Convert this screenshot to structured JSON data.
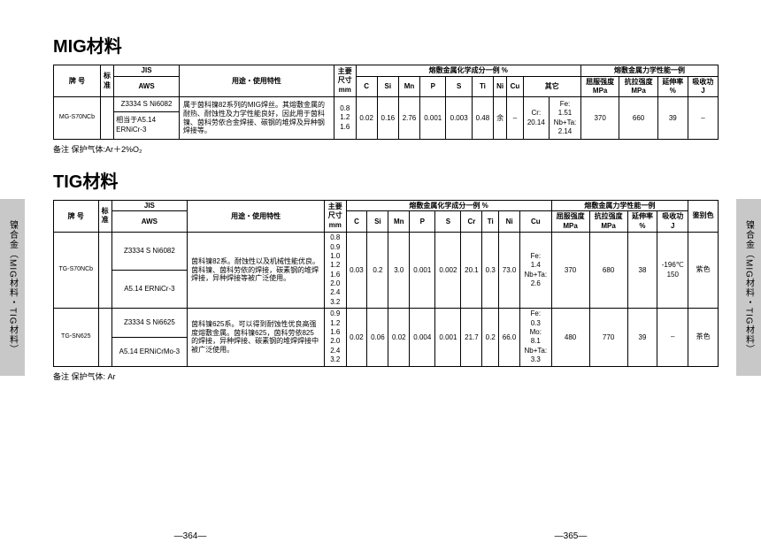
{
  "sidebar_label": "镍合金（MIG材料・TIG材料）",
  "mig": {
    "title": "MIG材料",
    "headers": {
      "grade": "牌 号",
      "standard": "标\n准",
      "jis": "JIS",
      "aws": "AWS",
      "usage": "用途・使用特性",
      "size": "主要\n尺寸\nmm",
      "comp_group": "熔敷金属化学成分一例 %",
      "c": "C",
      "si": "Si",
      "mn": "Mn",
      "p": "P",
      "s": "S",
      "ti": "Ti",
      "ni": "Ni",
      "cu": "Cu",
      "other": "其它",
      "mech_group": "熔敷金属力学性能一例",
      "ys": "屈服强度\nMPa",
      "ts": "抗拉强度\nMPa",
      "el": "延伸率\n%",
      "imp": "吸收功\nJ"
    },
    "row": {
      "grade": "MG-S70NCb",
      "jis": "Z3334 S Ni6082",
      "aws": "相当于A5.14\nERNiCr-3",
      "usage": "属于茵科镍82系列的MIG焊丝。其熔敷金属的耐热、耐蚀性及力学性能良好，因此用于茵科镍、茵科劳依合金焊接、碳钢的堆焊及异种钢焊接等。",
      "size": "0.8\n1.2\n1.6",
      "c": "0.02",
      "si": "0.16",
      "mn": "2.76",
      "p": "0.001",
      "s": "0.003",
      "ti": "0.48",
      "ni": "余",
      "cu": "–",
      "other": "Cr:\n20.14",
      "other2": "Fe:\n1.51\nNb+Ta:\n2.14",
      "ys": "370",
      "ts": "660",
      "el": "39",
      "imp": "–"
    },
    "note": "备注 保护气体:Ar＋2%O₂"
  },
  "tig": {
    "title": "TIG材料",
    "headers": {
      "grade": "牌 号",
      "standard": "标\n准",
      "jis": "JIS",
      "aws": "AWS",
      "usage": "用途・使用特性",
      "size": "主要\n尺寸\nmm",
      "comp_group": "熔敷金属化学成分一例 %",
      "c": "C",
      "si": "Si",
      "mn": "Mn",
      "p": "P",
      "s": "S",
      "cr": "Cr",
      "ti": "Ti",
      "ni": "Ni",
      "cu": "Cu",
      "mech_group": "熔敷金属力学性能一例",
      "ys": "屈服强度\nMPa",
      "ts": "抗拉强度\nMPa",
      "el": "延伸率\n%",
      "imp": "吸收功\nJ",
      "color": "鉴别色"
    },
    "rows": [
      {
        "grade": "TG-S70NCb",
        "jis": "Z3334 S Ni6082",
        "aws": "A5.14 ERNiCr-3",
        "usage": "茵科镍82系。耐蚀性以及机械性能优良。茵科镍、茵科劳依的焊接，碳素钢的堆焊焊接，异种焊接等被广泛使用。",
        "size": "0.8\n0.9\n1.0\n1.2\n1.6\n2.0\n2.4\n3.2",
        "c": "0.03",
        "si": "0.2",
        "mn": "3.0",
        "p": "0.001",
        "s": "0.002",
        "cr": "20.1",
        "ti": "0.3",
        "ni": "73.0",
        "cu": "Fe:\n1.4\nNb+Ta:\n2.6",
        "ys": "370",
        "ts": "680",
        "el": "38",
        "imp": "-196℃\n150",
        "color": "紫色"
      },
      {
        "grade": "TG-SN625",
        "jis": "Z3334 S Ni6625",
        "aws": "A5.14 ERNiCrMo-3",
        "usage": "茵科镍625系。可以得到耐蚀性优良高强度熔敷金属。茵科镍625，茵科劳依825的焊接，异种焊接、碳素钢的堆焊焊接中被广泛使用。",
        "size": "0.9\n1.2\n1.6\n2.0\n2.4\n3.2",
        "c": "0.02",
        "si": "0.06",
        "mn": "0.02",
        "p": "0.004",
        "s": "0.001",
        "cr": "21.7",
        "ti": "0.2",
        "ni": "66.0",
        "cu": "Fe:\n0.3\nMo:\n8.1\nNb+Ta:\n3.3",
        "ys": "480",
        "ts": "770",
        "el": "39",
        "imp": "–",
        "color": "茶色"
      }
    ],
    "note": "备注 保护气体: Ar"
  },
  "pages": {
    "left": "—364—",
    "right": "—365—"
  }
}
